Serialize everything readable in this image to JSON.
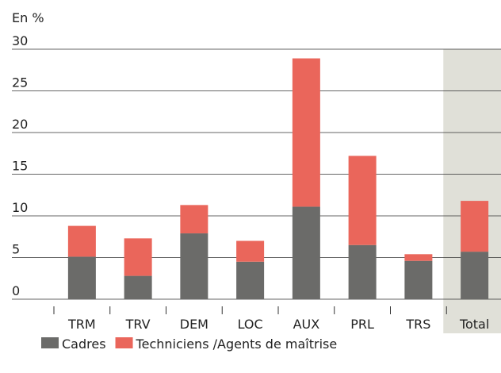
{
  "chart_data": {
    "type": "stacked_bar",
    "y_label": "En %",
    "categories": [
      "TRM",
      "TRV",
      "DEM",
      "LOC",
      "AUX",
      "PRL",
      "TRS",
      "Total"
    ],
    "series": [
      {
        "name": "Cadres",
        "color": "#6b6b69",
        "values": [
          5.1,
          2.8,
          7.9,
          4.5,
          11.1,
          6.5,
          4.6,
          5.7
        ]
      },
      {
        "name": "Techniciens /Agents de maîtrise",
        "color": "#ea665b",
        "values": [
          3.7,
          4.5,
          3.4,
          2.5,
          17.8,
          10.7,
          0.8,
          6.1
        ]
      }
    ],
    "ylim": [
      0,
      30
    ],
    "yticks": [
      0,
      5,
      10,
      15,
      20,
      25,
      30
    ],
    "grid": true,
    "highlight": 7,
    "highlight_color": "#e0e0d8"
  }
}
